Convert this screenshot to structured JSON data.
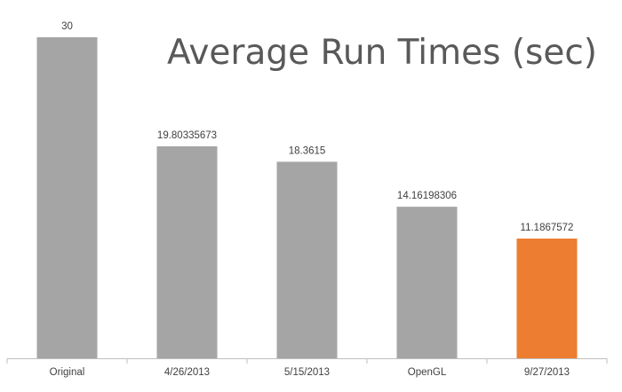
{
  "chart_data": {
    "type": "bar",
    "title": "Average Run Times (sec)",
    "categories": [
      "Original",
      "4/26/2013",
      "5/15/2013",
      "OpenGL",
      "9/27/2013"
    ],
    "values": [
      30,
      19.80335673,
      18.3615,
      14.16198306,
      11.1867572
    ],
    "data_labels": [
      "30",
      "19.80335673",
      "18.3615",
      "14.16198306",
      "11.1867572"
    ],
    "xlabel": "",
    "ylabel": "",
    "ylim": [
      0,
      30
    ],
    "grid": false,
    "legend": "none",
    "colors": {
      "default_bar": "#a5a5a5",
      "highlight_bar": "#ed7d31",
      "axis": "#bfbfbf",
      "text": "#404040",
      "title": "#595959"
    },
    "highlight_index": 4
  }
}
